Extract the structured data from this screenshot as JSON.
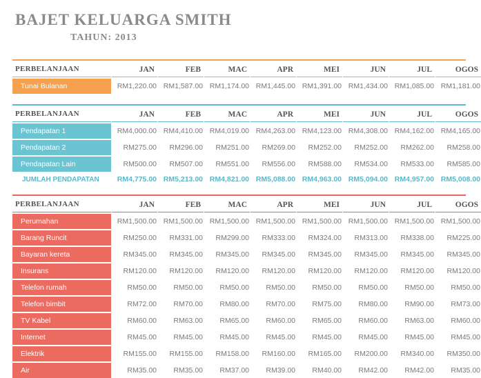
{
  "title": "BAJET KELUARGA SMITH",
  "subtitle": "TAHUN: 2013",
  "colors": {
    "orange": "#f5a04e",
    "teal": "#6ac4d2",
    "red": "#ec6b60"
  },
  "header": {
    "label": "PERBELANJAAN",
    "months": [
      "JAN",
      "FEB",
      "MAC",
      "APR",
      "MEI",
      "JUN",
      "JUL",
      "OGOS"
    ]
  },
  "tunai": {
    "rows": [
      {
        "label": "Tunai Bulanan",
        "values": [
          "RM1,220.00",
          "RM1,587.00",
          "RM1,174.00",
          "RM1,445.00",
          "RM1,391.00",
          "RM1,434.00",
          "RM1,085.00",
          "RM1,181.00"
        ]
      }
    ]
  },
  "pendapatan": {
    "rows": [
      {
        "label": "Pendapatan 1",
        "values": [
          "RM4,000.00",
          "RM4,410.00",
          "RM4,019.00",
          "RM4,263.00",
          "RM4,123.00",
          "RM4,308.00",
          "RM4,162.00",
          "RM4,165.00"
        ]
      },
      {
        "label": "Pendapatan 2",
        "values": [
          "RM275.00",
          "RM296.00",
          "RM251.00",
          "RM269.00",
          "RM252.00",
          "RM252.00",
          "RM262.00",
          "RM258.00"
        ]
      },
      {
        "label": "Pendapatan Lain",
        "values": [
          "RM500.00",
          "RM507.00",
          "RM551.00",
          "RM556.00",
          "RM588.00",
          "RM534.00",
          "RM533.00",
          "RM585.00"
        ]
      }
    ],
    "total": {
      "label": "JUMLAH PENDAPATAN",
      "values": [
        "RM4,775.00",
        "RM5,213.00",
        "RM4,821.00",
        "RM5,088.00",
        "RM4,963.00",
        "RM5,094.00",
        "RM4,957.00",
        "RM5,008.00"
      ]
    }
  },
  "perbelanjaan": {
    "rows": [
      {
        "label": "Perumahan",
        "values": [
          "RM1,500.00",
          "RM1,500.00",
          "RM1,500.00",
          "RM1,500.00",
          "RM1,500.00",
          "RM1,500.00",
          "RM1,500.00",
          "RM1,500.00"
        ]
      },
      {
        "label": "Barang Runcit",
        "values": [
          "RM250.00",
          "RM331.00",
          "RM299.00",
          "RM333.00",
          "RM324.00",
          "RM313.00",
          "RM338.00",
          "RM225.00"
        ]
      },
      {
        "label": "Bayaran kereta",
        "values": [
          "RM345.00",
          "RM345.00",
          "RM345.00",
          "RM345.00",
          "RM345.00",
          "RM345.00",
          "RM345.00",
          "RM345.00"
        ]
      },
      {
        "label": "Insurans",
        "values": [
          "RM120.00",
          "RM120.00",
          "RM120.00",
          "RM120.00",
          "RM120.00",
          "RM120.00",
          "RM120.00",
          "RM120.00"
        ]
      },
      {
        "label": "Telefon rumah",
        "values": [
          "RM50.00",
          "RM50.00",
          "RM50.00",
          "RM50.00",
          "RM50.00",
          "RM50.00",
          "RM50.00",
          "RM50.00"
        ]
      },
      {
        "label": "Telefon bimbit",
        "values": [
          "RM72.00",
          "RM70.00",
          "RM80.00",
          "RM70.00",
          "RM75.00",
          "RM80.00",
          "RM90.00",
          "RM73.00"
        ]
      },
      {
        "label": "TV Kabel",
        "values": [
          "RM60.00",
          "RM63.00",
          "RM65.00",
          "RM60.00",
          "RM65.00",
          "RM60.00",
          "RM63.00",
          "RM60.00"
        ]
      },
      {
        "label": "Internet",
        "values": [
          "RM45.00",
          "RM45.00",
          "RM45.00",
          "RM45.00",
          "RM45.00",
          "RM45.00",
          "RM45.00",
          "RM45.00"
        ]
      },
      {
        "label": "Elektrik",
        "values": [
          "RM155.00",
          "RM155.00",
          "RM158.00",
          "RM160.00",
          "RM165.00",
          "RM200.00",
          "RM340.00",
          "RM350.00"
        ]
      },
      {
        "label": "Air",
        "values": [
          "RM35.00",
          "RM35.00",
          "RM37.00",
          "RM39.00",
          "RM40.00",
          "RM42.00",
          "RM42.00",
          "RM35.00"
        ]
      }
    ]
  }
}
